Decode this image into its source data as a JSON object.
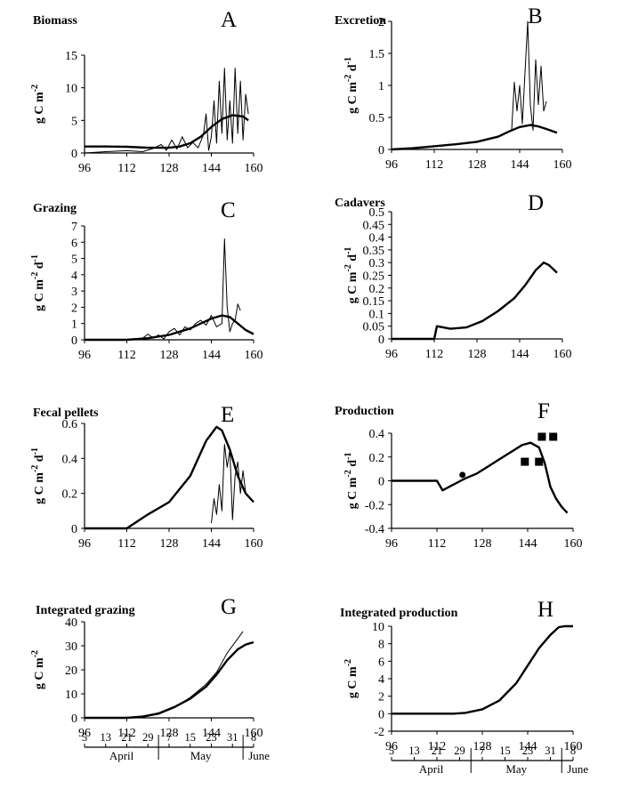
{
  "chart_data": [
    {
      "letter": "A",
      "title": "Biomass",
      "type": "line",
      "ylabel": "g C m^-2",
      "ylim": [
        0,
        15
      ],
      "yticks": [
        0,
        5,
        10,
        15
      ],
      "xlim": [
        96,
        160
      ],
      "xticks": [
        96,
        112,
        128,
        144,
        160
      ],
      "series": [
        {
          "values": [
            [
              96,
              1
            ],
            [
              104,
              1
            ],
            [
              112,
              0.95
            ],
            [
              120,
              0.8
            ],
            [
              128,
              0.8
            ],
            [
              132,
              1
            ],
            [
              136,
              1.5
            ],
            [
              140,
              2.5
            ],
            [
              144,
              4
            ],
            [
              148,
              5.2
            ],
            [
              152,
              5.8
            ],
            [
              156,
              5.6
            ],
            [
              158,
              5
            ]
          ]
        },
        {
          "values": [
            [
              96,
              0
            ],
            [
              104,
              0.2
            ],
            [
              112,
              0.35
            ],
            [
              118,
              0.2
            ],
            [
              122,
              0.7
            ],
            [
              125,
              1.3
            ],
            [
              127,
              0.4
            ],
            [
              129,
              2.0
            ],
            [
              131,
              0.6
            ],
            [
              133,
              2.5
            ],
            [
              135,
              0.8
            ],
            [
              137,
              1.6
            ],
            [
              139,
              0.8
            ],
            [
              141,
              2.8
            ],
            [
              142,
              6
            ],
            [
              143,
              0.4
            ],
            [
              144,
              2.5
            ],
            [
              145,
              8
            ],
            [
              146,
              1.5
            ],
            [
              147,
              11
            ],
            [
              148,
              3
            ],
            [
              149,
              13
            ],
            [
              150,
              2
            ],
            [
              151,
              8
            ],
            [
              152,
              1.5
            ],
            [
              153,
              13
            ],
            [
              154,
              3
            ],
            [
              155,
              11
            ],
            [
              156,
              2
            ],
            [
              157,
              9
            ],
            [
              158,
              6
            ]
          ]
        }
      ]
    },
    {
      "letter": "B",
      "title": "Excretion",
      "type": "line",
      "ylabel": "g C m^-2 d^-1",
      "ylim": [
        0,
        2
      ],
      "yticks": [
        0,
        0.5,
        1,
        1.5,
        2
      ],
      "xlim": [
        96,
        160
      ],
      "xticks": [
        96,
        112,
        128,
        144,
        160
      ],
      "series": [
        {
          "values": [
            [
              96,
              0
            ],
            [
              104,
              0.02
            ],
            [
              112,
              0.05
            ],
            [
              120,
              0.08
            ],
            [
              128,
              0.12
            ],
            [
              136,
              0.2
            ],
            [
              140,
              0.28
            ],
            [
              144,
              0.35
            ],
            [
              148,
              0.38
            ],
            [
              151,
              0.36
            ],
            [
              154,
              0.32
            ],
            [
              158,
              0.26
            ]
          ]
        },
        {
          "values": [
            [
              141,
              0.3
            ],
            [
              142,
              1.05
            ],
            [
              143,
              0.6
            ],
            [
              144,
              1.0
            ],
            [
              145,
              0.4
            ],
            [
              146,
              1.2
            ],
            [
              147,
              2.0
            ],
            [
              148,
              0.7
            ],
            [
              149,
              0.3
            ],
            [
              150,
              1.4
            ],
            [
              151,
              0.7
            ],
            [
              152,
              1.3
            ],
            [
              153,
              0.6
            ],
            [
              154,
              0.75
            ]
          ]
        }
      ]
    },
    {
      "letter": "C",
      "title": "Grazing",
      "type": "line",
      "ylabel": "g C m^-2 d^-1",
      "ylim": [
        0,
        7
      ],
      "yticks": [
        0,
        1,
        2,
        3,
        4,
        5,
        6,
        7
      ],
      "xlim": [
        96,
        160
      ],
      "xticks": [
        96,
        112,
        128,
        144,
        160
      ],
      "series": [
        {
          "values": [
            [
              96,
              0
            ],
            [
              104,
              0
            ],
            [
              112,
              0
            ],
            [
              120,
              0.1
            ],
            [
              128,
              0.3
            ],
            [
              136,
              0.7
            ],
            [
              144,
              1.3
            ],
            [
              148,
              1.5
            ],
            [
              151,
              1.4
            ],
            [
              154,
              1.0
            ],
            [
              157,
              0.6
            ],
            [
              160,
              0.35
            ]
          ]
        },
        {
          "values": [
            [
              118,
              0.1
            ],
            [
              120,
              0.35
            ],
            [
              122,
              0.1
            ],
            [
              124,
              0.3
            ],
            [
              126,
              0.05
            ],
            [
              128,
              0.5
            ],
            [
              130,
              0.7
            ],
            [
              132,
              0.3
            ],
            [
              134,
              0.8
            ],
            [
              136,
              0.6
            ],
            [
              138,
              1.0
            ],
            [
              140,
              1.2
            ],
            [
              142,
              0.9
            ],
            [
              144,
              1.5
            ],
            [
              146,
              0.8
            ],
            [
              148,
              1.0
            ],
            [
              149,
              6.2
            ],
            [
              150,
              2.0
            ],
            [
              151,
              0.5
            ],
            [
              152,
              1.0
            ],
            [
              153,
              1.2
            ],
            [
              154,
              2.2
            ],
            [
              155,
              1.8
            ]
          ]
        }
      ]
    },
    {
      "letter": "D",
      "title": "Cadavers",
      "type": "line",
      "ylabel": "g C m^-2 d^-1",
      "ylim": [
        0,
        0.5
      ],
      "yticks": [
        0,
        0.05,
        0.1,
        0.15,
        0.2,
        0.25,
        0.3,
        0.35,
        0.4,
        0.45,
        0.5
      ],
      "xlim": [
        96,
        160
      ],
      "xticks": [
        96,
        112,
        128,
        144,
        160
      ],
      "series": [
        {
          "values": [
            [
              96,
              0
            ],
            [
              104,
              0
            ],
            [
              112,
              0
            ],
            [
              113,
              0.05
            ],
            [
              118,
              0.04
            ],
            [
              124,
              0.045
            ],
            [
              130,
              0.07
            ],
            [
              136,
              0.11
            ],
            [
              142,
              0.16
            ],
            [
              146,
              0.21
            ],
            [
              150,
              0.27
            ],
            [
              153,
              0.3
            ],
            [
              155,
              0.29
            ],
            [
              157,
              0.27
            ],
            [
              158,
              0.26
            ]
          ]
        }
      ]
    },
    {
      "letter": "E",
      "title": "Fecal pellets",
      "type": "line",
      "ylabel": "g C m^-2 d^-1",
      "ylim": [
        0,
        0.6
      ],
      "yticks": [
        0,
        0.2,
        0.4,
        0.6
      ],
      "xlim": [
        96,
        160
      ],
      "xticks": [
        96,
        112,
        128,
        144,
        160
      ],
      "series": [
        {
          "values": [
            [
              96,
              0
            ],
            [
              104,
              0
            ],
            [
              112,
              0
            ],
            [
              116,
              0.04
            ],
            [
              120,
              0.08
            ],
            [
              128,
              0.15
            ],
            [
              136,
              0.3
            ],
            [
              142,
              0.5
            ],
            [
              146,
              0.58
            ],
            [
              148,
              0.56
            ],
            [
              151,
              0.45
            ],
            [
              154,
              0.3
            ],
            [
              157,
              0.2
            ],
            [
              160,
              0.15
            ]
          ]
        },
        {
          "values": [
            [
              144,
              0.03
            ],
            [
              145,
              0.17
            ],
            [
              146,
              0.08
            ],
            [
              147,
              0.25
            ],
            [
              148,
              0.1
            ],
            [
              149,
              0.48
            ],
            [
              150,
              0.35
            ],
            [
              151,
              0.45
            ],
            [
              152,
              0.05
            ],
            [
              153,
              0.3
            ],
            [
              154,
              0.38
            ],
            [
              155,
              0.2
            ],
            [
              156,
              0.33
            ],
            [
              157,
              0.2
            ]
          ]
        }
      ]
    },
    {
      "letter": "F",
      "title": "Production",
      "type": "line",
      "ylabel": "g C m^-2 d^-1",
      "ylim": [
        -0.4,
        0.4
      ],
      "yticks": [
        -0.4,
        -0.2,
        0,
        0.2,
        0.4
      ],
      "xlim": [
        96,
        160
      ],
      "xticks": [
        96,
        112,
        128,
        144,
        160
      ],
      "series": [
        {
          "values": [
            [
              96,
              0
            ],
            [
              104,
              0
            ],
            [
              112,
              0
            ],
            [
              114,
              -0.08
            ],
            [
              118,
              -0.03
            ],
            [
              122,
              0.02
            ],
            [
              126,
              0.06
            ],
            [
              130,
              0.12
            ],
            [
              134,
              0.18
            ],
            [
              138,
              0.24
            ],
            [
              142,
              0.3
            ],
            [
              145,
              0.32
            ],
            [
              148,
              0.28
            ],
            [
              150,
              0.15
            ],
            [
              152,
              -0.05
            ],
            [
              154,
              -0.15
            ],
            [
              156,
              -0.22
            ],
            [
              158,
              -0.27
            ]
          ]
        }
      ],
      "markers": [
        {
          "shape": "circle",
          "x": 121,
          "y": 0.05
        },
        {
          "shape": "square",
          "x": 143,
          "y": 0.16
        },
        {
          "shape": "square",
          "x": 148,
          "y": 0.16
        },
        {
          "shape": "square",
          "x": 149,
          "y": 0.37
        },
        {
          "shape": "square",
          "x": 153,
          "y": 0.37
        }
      ]
    },
    {
      "letter": "G",
      "title": "Integrated grazing",
      "type": "line",
      "ylabel": "g C m^-2",
      "ylim": [
        0,
        40
      ],
      "yticks": [
        0,
        10,
        20,
        30,
        40
      ],
      "xlim": [
        96,
        160
      ],
      "xticks": [
        96,
        112,
        128,
        144,
        160
      ],
      "series": [
        {
          "values": [
            [
              96,
              0
            ],
            [
              104,
              0
            ],
            [
              112,
              0
            ],
            [
              118,
              0.5
            ],
            [
              124,
              1.8
            ],
            [
              130,
              4.5
            ],
            [
              136,
              8
            ],
            [
              142,
              13
            ],
            [
              146,
              18
            ],
            [
              150,
              24
            ],
            [
              154,
              28.5
            ],
            [
              157,
              30.5
            ],
            [
              160,
              31.5
            ]
          ]
        },
        {
          "values": [
            [
              118,
              0.3
            ],
            [
              124,
              1.5
            ],
            [
              130,
              4.2
            ],
            [
              136,
              8.5
            ],
            [
              142,
              14
            ],
            [
              146,
              19
            ],
            [
              150,
              27
            ],
            [
              154,
              33
            ],
            [
              156,
              36
            ]
          ]
        }
      ],
      "date_axis": {
        "ticks": [
          [
            96,
            "5"
          ],
          [
            100,
            "13"
          ],
          [
            104,
            "21"
          ],
          [
            108,
            "29"
          ],
          [
            112,
            "7"
          ],
          [
            116,
            "15"
          ],
          [
            120,
            "23"
          ],
          [
            124,
            "31"
          ],
          [
            128,
            "8"
          ]
        ],
        "months": [
          "April",
          "May",
          "June"
        ]
      }
    },
    {
      "letter": "H",
      "title": "Integrated production",
      "type": "line",
      "ylabel": "g C m^-2",
      "ylim": [
        -2,
        10
      ],
      "yticks": [
        -2,
        0,
        2,
        4,
        6,
        8,
        10
      ],
      "xlim": [
        96,
        160
      ],
      "xticks": [
        96,
        112,
        128,
        144,
        160
      ],
      "series": [
        {
          "values": [
            [
              96,
              0
            ],
            [
              104,
              0
            ],
            [
              112,
              0
            ],
            [
              118,
              0
            ],
            [
              122,
              0.1
            ],
            [
              128,
              0.5
            ],
            [
              134,
              1.5
            ],
            [
              140,
              3.5
            ],
            [
              144,
              5.5
            ],
            [
              148,
              7.5
            ],
            [
              152,
              9
            ],
            [
              155,
              9.9
            ],
            [
              157,
              10
            ],
            [
              160,
              10
            ]
          ]
        }
      ],
      "date_axis": {
        "ticks": [
          [
            96,
            "5"
          ],
          [
            100,
            "13"
          ],
          [
            104,
            "21"
          ],
          [
            108,
            "29"
          ],
          [
            112,
            "7"
          ],
          [
            116,
            "15"
          ],
          [
            120,
            "23"
          ],
          [
            124,
            "31"
          ],
          [
            128,
            "8"
          ]
        ],
        "months": [
          "April",
          "May",
          "June"
        ]
      }
    }
  ]
}
